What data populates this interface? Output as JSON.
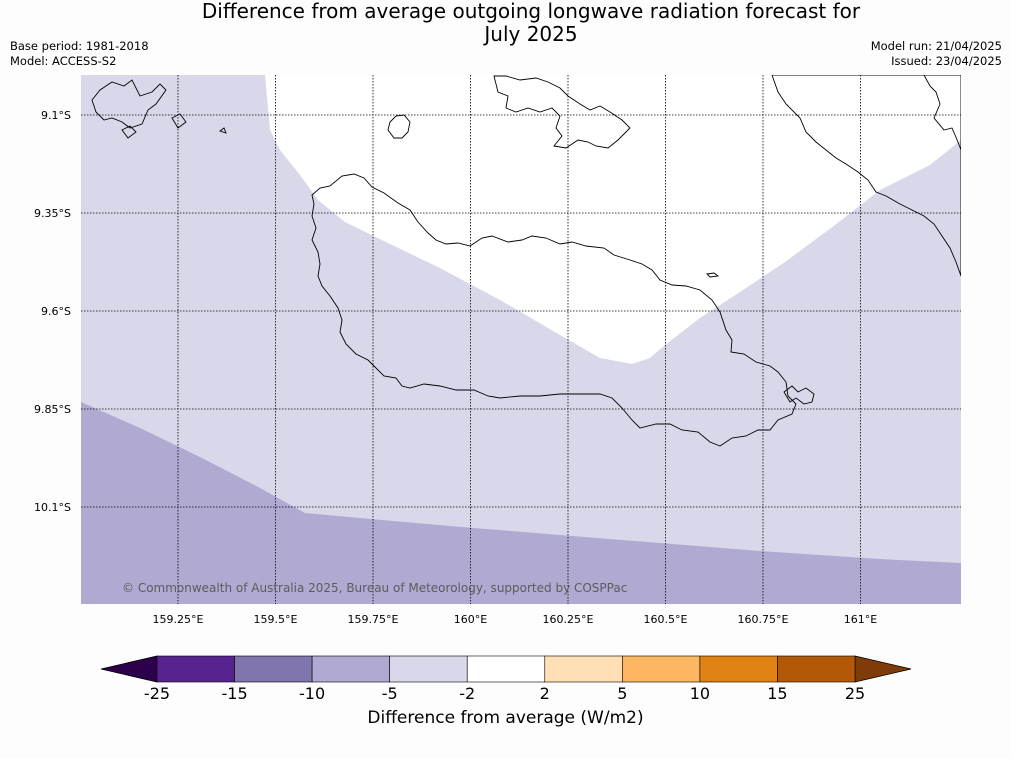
{
  "title": {
    "line1": "Difference from average outgoing longwave radiation forecast for",
    "line2": "July 2025"
  },
  "meta": {
    "base_period": "Base period: 1981-2018",
    "model": "Model: ACCESS-S2",
    "model_run": "Model run: 21/04/2025",
    "issued": "Issued: 23/04/2025"
  },
  "map": {
    "lon_labels": [
      "159.25°E",
      "159.5°E",
      "159.75°E",
      "160°E",
      "160.25°E",
      "160.5°E",
      "160.75°E",
      "161°E"
    ],
    "lat_labels": [
      "9.1°S",
      "9.35°S",
      "9.6°S",
      "9.85°S",
      "10.1°S"
    ],
    "lon_values": [
      159.25,
      159.5,
      159.75,
      160.0,
      160.25,
      160.5,
      160.75,
      161.0
    ],
    "lat_values": [
      -9.1,
      -9.35,
      -9.6,
      -9.85,
      -10.1
    ],
    "copyright": "© Commonwealth of Australia 2025, Bureau of Meteorology, supported by COSPPac",
    "fill_colors": {
      "range_-5_to_-2": "#d8d8ea",
      "range_-10_to_-5": "#b0aad2",
      "range_-2_to_2": "#ffffff"
    }
  },
  "colorbar": {
    "label": "Difference from average (W/m2)",
    "ticks": [
      "-25",
      "-15",
      "-10",
      "-5",
      "-2",
      "2",
      "5",
      "10",
      "15",
      "25"
    ],
    "colors": [
      "#57238f",
      "#8075ad",
      "#b0aad2",
      "#d8d8ea",
      "#ffffff",
      "#ffdfb5",
      "#fdb762",
      "#e08214",
      "#b35806"
    ],
    "extend_low_color": "#2d004b",
    "extend_high_color": "#7f3b08"
  }
}
